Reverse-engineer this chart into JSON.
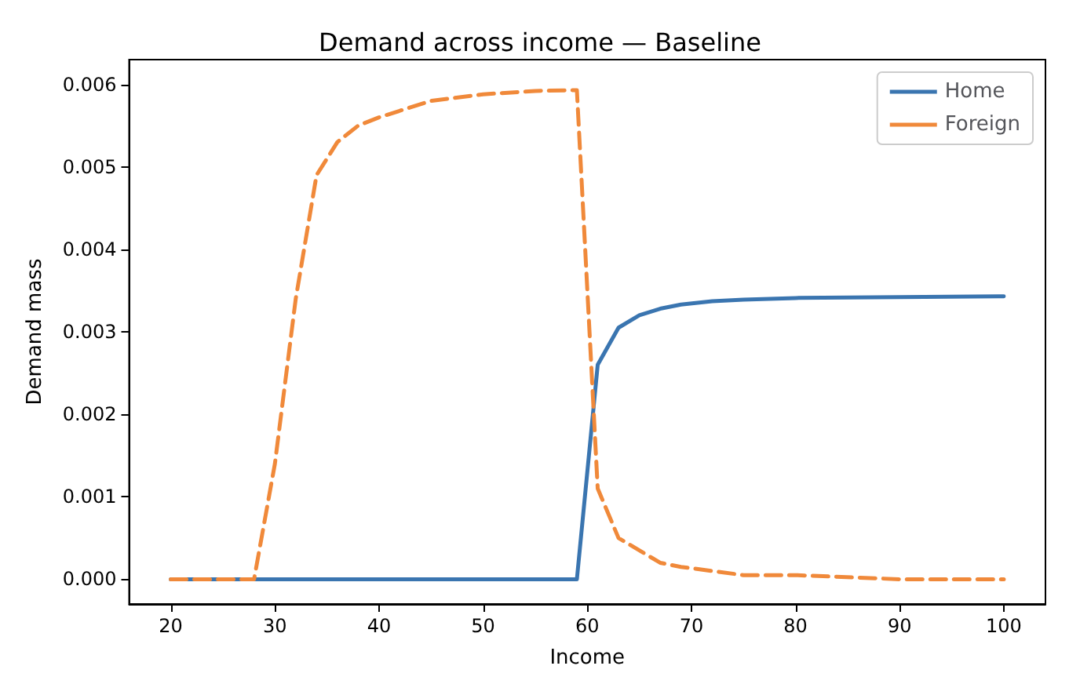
{
  "chart_data": {
    "type": "line",
    "title": "Demand across income — Baseline",
    "xlabel": "Income",
    "ylabel": "Demand mass",
    "x": [
      20,
      22,
      24,
      26,
      28,
      30,
      32,
      34,
      36,
      38,
      40,
      45,
      50,
      55,
      59,
      61,
      63,
      65,
      67,
      69,
      72,
      75,
      80,
      90,
      100
    ],
    "series": [
      {
        "name": "Home",
        "color": "#3a75b0",
        "line_style": "solid",
        "values": [
          0,
          0,
          0,
          0,
          0,
          0,
          0,
          0,
          0,
          0,
          0,
          0,
          0,
          0,
          0,
          0.0026,
          0.00305,
          0.0032,
          0.00328,
          0.00333,
          0.00337,
          0.00339,
          0.00341,
          0.00342,
          0.00343
        ]
      },
      {
        "name": "Foreign",
        "color": "#f0893a",
        "line_style": "dashed",
        "values": [
          0,
          0,
          0,
          0,
          0,
          0.0014,
          0.0034,
          0.0049,
          0.0053,
          0.0055,
          0.0056,
          0.0058,
          0.00588,
          0.00592,
          0.00593,
          0.0011,
          0.0005,
          0.00035,
          0.0002,
          0.00015,
          0.0001,
          5e-05,
          5e-05,
          0,
          0
        ]
      }
    ],
    "xlim": [
      16,
      104
    ],
    "xticks": [
      20,
      30,
      40,
      50,
      60,
      70,
      80,
      90,
      100
    ],
    "ylim": [
      -0.0003,
      0.0063
    ],
    "yticks": [
      {
        "value": 0,
        "label": "0.000"
      },
      {
        "value": 0.001,
        "label": "0.001"
      },
      {
        "value": 0.002,
        "label": "0.002"
      },
      {
        "value": 0.003,
        "label": "0.003"
      },
      {
        "value": 0.004,
        "label": "0.004"
      },
      {
        "value": 0.005,
        "label": "0.005"
      },
      {
        "value": 0.006,
        "label": "0.006"
      }
    ],
    "grid": false,
    "legend": "top right",
    "marker": "none"
  }
}
